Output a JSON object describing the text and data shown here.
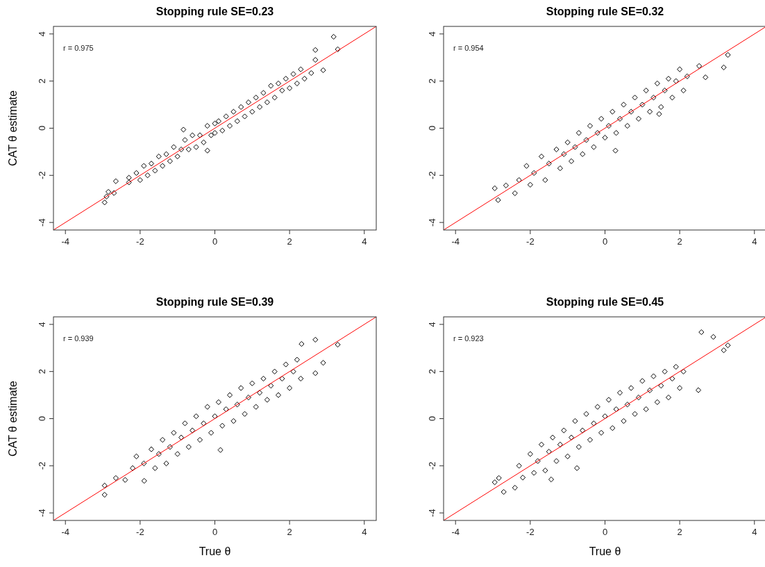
{
  "chart_data": [
    {
      "type": "scatter",
      "title": "Stopping rule SE=0.23",
      "ylabel": "CAT θ estimate",
      "annotations": [
        "r = 0.975"
      ],
      "xlim": [
        -4.32,
        4.32
      ],
      "ylim": [
        -4.32,
        4.32
      ],
      "xticks": [
        -4,
        -2,
        0,
        2,
        4
      ],
      "yticks": [
        -4,
        -2,
        0,
        2,
        4
      ],
      "grid": false,
      "series": [
        {
          "marker": "diamond",
          "color": "#000000",
          "x": [
            -2.95,
            -2.9,
            -2.85,
            -2.7,
            -2.65,
            -2.3,
            -2.3,
            -2.1,
            -2.0,
            -1.9,
            -1.8,
            -1.7,
            -1.6,
            -1.5,
            -1.4,
            -1.3,
            -1.2,
            -1.1,
            -1.0,
            -0.9,
            -0.84,
            -0.8,
            -0.7,
            -0.6,
            -0.5,
            -0.4,
            -0.3,
            -0.2,
            -0.2,
            -0.1,
            0,
            0,
            0.1,
            0.2,
            0.3,
            0.4,
            0.5,
            0.6,
            0.7,
            0.8,
            0.9,
            1.0,
            1.1,
            1.2,
            1.3,
            1.4,
            1.5,
            1.6,
            1.7,
            1.8,
            1.9,
            2.0,
            2.1,
            2.2,
            2.3,
            2.4,
            2.58,
            2.69,
            2.69,
            2.9,
            3.18,
            3.29
          ],
          "values": [
            -3.15,
            -2.9,
            -2.7,
            -2.75,
            -2.25,
            -2.3,
            -2.1,
            -1.9,
            -2.2,
            -1.6,
            -2.0,
            -1.5,
            -1.8,
            -1.2,
            -1.6,
            -1.1,
            -1.4,
            -0.8,
            -1.2,
            -0.9,
            -0.06,
            -0.5,
            -0.9,
            -0.3,
            -0.8,
            -0.3,
            -0.6,
            0.1,
            -0.95,
            -0.3,
            0.2,
            -0.2,
            0.3,
            -0.1,
            0.5,
            0.1,
            0.7,
            0.3,
            0.9,
            0.5,
            1.1,
            0.7,
            1.3,
            0.9,
            1.5,
            1.1,
            1.8,
            1.3,
            1.9,
            1.6,
            2.1,
            1.7,
            2.3,
            1.9,
            2.5,
            2.1,
            2.34,
            2.9,
            3.32,
            2.46,
            3.88,
            3.35
          ]
        },
        {
          "type": "line",
          "marker": "none",
          "color": "#ff0000",
          "x": [
            -4.32,
            4.32
          ],
          "values": [
            -4.32,
            4.32
          ]
        }
      ]
    },
    {
      "type": "scatter",
      "title": "Stopping rule SE=0.32",
      "annotations": [
        "r = 0.954"
      ],
      "xlim": [
        -4.32,
        4.32
      ],
      "ylim": [
        -4.32,
        4.32
      ],
      "xticks": [
        -4,
        -2,
        0,
        2,
        4
      ],
      "yticks": [
        -4,
        -2,
        0,
        2,
        4
      ],
      "grid": false,
      "series": [
        {
          "marker": "diamond",
          "color": "#000000",
          "x": [
            -2.95,
            -2.86,
            -2.65,
            -2.41,
            -2.3,
            -2.1,
            -2.0,
            -1.9,
            -1.7,
            -1.6,
            -1.5,
            -1.3,
            -1.2,
            -1.1,
            -1.0,
            -0.9,
            -0.8,
            -0.7,
            -0.6,
            -0.5,
            -0.4,
            -0.3,
            -0.2,
            -0.1,
            0,
            0.1,
            0.2,
            0.28,
            0.3,
            0.4,
            0.5,
            0.6,
            0.7,
            0.8,
            0.9,
            1.0,
            1.1,
            1.2,
            1.3,
            1.4,
            1.45,
            1.5,
            1.6,
            1.7,
            1.8,
            1.9,
            2.0,
            2.1,
            2.2,
            2.52,
            2.69,
            3.18,
            3.29
          ],
          "values": [
            -2.55,
            -3.05,
            -2.43,
            -2.76,
            -2.2,
            -1.6,
            -2.4,
            -1.9,
            -1.2,
            -2.2,
            -1.5,
            -0.9,
            -1.7,
            -1.1,
            -0.6,
            -1.4,
            -0.8,
            -0.2,
            -1.1,
            -0.5,
            0.1,
            -0.8,
            -0.2,
            0.4,
            -0.4,
            0.1,
            0.7,
            -0.95,
            -0.2,
            0.4,
            1.0,
            0.1,
            0.7,
            1.3,
            0.4,
            1.0,
            1.6,
            0.7,
            1.3,
            1.9,
            0.6,
            0.9,
            1.6,
            2.1,
            1.3,
            2.0,
            2.5,
            1.6,
            2.2,
            2.64,
            2.16,
            2.58,
            3.11
          ]
        },
        {
          "type": "line",
          "marker": "none",
          "color": "#ff0000",
          "x": [
            -4.32,
            4.32
          ],
          "values": [
            -4.32,
            4.32
          ]
        }
      ]
    },
    {
      "type": "scatter",
      "title": "Stopping rule SE=0.39",
      "xlabel": "True θ",
      "ylabel": "CAT θ estimate",
      "annotations": [
        "r = 0.939"
      ],
      "xlim": [
        -4.32,
        4.32
      ],
      "ylim": [
        -4.32,
        4.32
      ],
      "xticks": [
        -4,
        -2,
        0,
        2,
        4
      ],
      "yticks": [
        -4,
        -2,
        0,
        2,
        4
      ],
      "grid": false,
      "series": [
        {
          "marker": "diamond",
          "color": "#000000",
          "x": [
            -2.95,
            -2.95,
            -2.65,
            -2.4,
            -2.2,
            -2.1,
            -1.89,
            -1.9,
            -1.7,
            -1.6,
            -1.5,
            -1.4,
            -1.3,
            -1.2,
            -1.1,
            -1.0,
            -0.9,
            -0.8,
            -0.7,
            -0.6,
            -0.5,
            -0.4,
            -0.3,
            -0.2,
            -0.1,
            0,
            0.1,
            0.15,
            0.2,
            0.3,
            0.4,
            0.5,
            0.6,
            0.7,
            0.8,
            0.9,
            1.0,
            1.1,
            1.2,
            1.3,
            1.4,
            1.5,
            1.6,
            1.7,
            1.8,
            1.9,
            2.0,
            2.1,
            2.2,
            2.3,
            2.32,
            2.69,
            2.69,
            2.9,
            3.29
          ],
          "values": [
            -3.23,
            -2.84,
            -2.52,
            -2.6,
            -2.1,
            -1.6,
            -2.64,
            -1.9,
            -1.3,
            -2.1,
            -1.5,
            -0.9,
            -1.9,
            -1.2,
            -0.6,
            -1.5,
            -0.8,
            -0.2,
            -1.2,
            -0.5,
            0.1,
            -0.9,
            -0.2,
            0.5,
            -0.6,
            0.1,
            0.7,
            -1.33,
            -0.3,
            0.4,
            1.0,
            -0.1,
            0.6,
            1.3,
            0.2,
            0.9,
            1.5,
            0.5,
            1.1,
            1.7,
            0.8,
            1.4,
            2.0,
            1.0,
            1.7,
            2.3,
            1.3,
            2.0,
            2.5,
            1.7,
            3.17,
            3.35,
            1.93,
            2.37,
            3.14
          ]
        },
        {
          "type": "line",
          "marker": "none",
          "color": "#ff0000",
          "x": [
            -4.32,
            4.32
          ],
          "values": [
            -4.32,
            4.32
          ]
        }
      ]
    },
    {
      "type": "scatter",
      "title": "Stopping rule SE=0.45",
      "xlabel": "True θ",
      "annotations": [
        "r = 0.923"
      ],
      "xlim": [
        -4.32,
        4.32
      ],
      "ylim": [
        -4.32,
        4.32
      ],
      "xticks": [
        -4,
        -2,
        0,
        2,
        4
      ],
      "yticks": [
        -4,
        -2,
        0,
        2,
        4
      ],
      "grid": false,
      "series": [
        {
          "marker": "diamond",
          "color": "#000000",
          "x": [
            -2.95,
            -2.84,
            -2.71,
            -2.41,
            -2.3,
            -2.2,
            -2.0,
            -1.9,
            -1.8,
            -1.7,
            -1.6,
            -1.44,
            -1.5,
            -1.4,
            -1.3,
            -1.2,
            -1.1,
            -1.0,
            -0.9,
            -0.8,
            -0.75,
            -0.7,
            -0.6,
            -0.5,
            -0.4,
            -0.3,
            -0.2,
            -0.1,
            0,
            0.1,
            0.2,
            0.3,
            0.4,
            0.5,
            0.6,
            0.7,
            0.8,
            0.9,
            1.0,
            1.1,
            1.2,
            1.3,
            1.4,
            1.5,
            1.6,
            1.7,
            1.8,
            1.9,
            2.0,
            2.1,
            2.5,
            2.58,
            2.9,
            3.18,
            3.29
          ],
          "values": [
            -2.7,
            -2.52,
            -3.11,
            -2.93,
            -2.0,
            -2.5,
            -1.5,
            -2.3,
            -1.8,
            -1.1,
            -2.2,
            -2.58,
            -1.4,
            -0.8,
            -1.8,
            -1.1,
            -0.5,
            -1.6,
            -0.8,
            -0.1,
            -2.1,
            -1.2,
            -0.5,
            0.2,
            -0.9,
            -0.2,
            0.5,
            -0.6,
            0.1,
            0.8,
            -0.4,
            0.4,
            1.1,
            -0.1,
            0.6,
            1.3,
            0.2,
            0.9,
            1.6,
            0.4,
            1.2,
            1.8,
            0.7,
            1.4,
            2.0,
            0.9,
            1.7,
            2.2,
            1.3,
            2.0,
            1.21,
            3.67,
            3.47,
            2.9,
            3.11
          ]
        },
        {
          "type": "line",
          "marker": "none",
          "color": "#ff0000",
          "x": [
            -4.32,
            4.32
          ],
          "values": [
            -4.32,
            4.32
          ]
        }
      ]
    }
  ]
}
